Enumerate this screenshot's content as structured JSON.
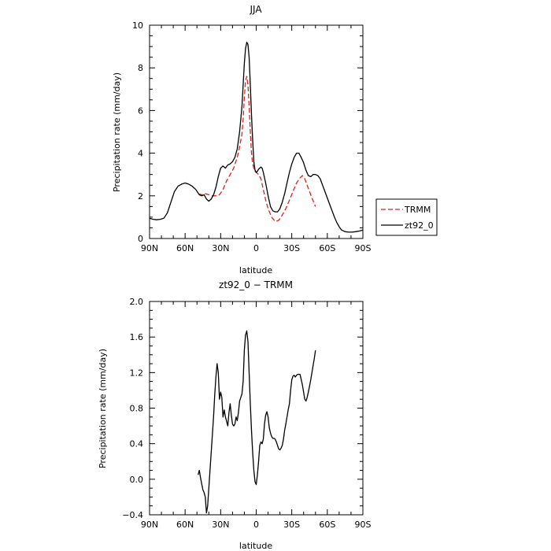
{
  "chart_data": [
    {
      "type": "line",
      "title": "JJA",
      "xlabel": "latitude",
      "ylabel": "Precipitation rate (mm/day)",
      "xlim": [
        90,
        -90
      ],
      "ylim": [
        0,
        10
      ],
      "x_ticks": [
        90,
        60,
        30,
        0,
        -30,
        -60,
        -90
      ],
      "x_tick_labels": [
        "90N",
        "60N",
        "30N",
        "0",
        "30S",
        "60S",
        "90S"
      ],
      "y_ticks": [
        0,
        2,
        4,
        6,
        8,
        10
      ],
      "y_tick_labels": [
        "0",
        "2",
        "4",
        "6",
        "8",
        "10"
      ],
      "grid": false,
      "legend_position": "right",
      "series": [
        {
          "name": "TRMM",
          "color": "#e0201b",
          "dash": "dashed",
          "x": [
            49,
            46,
            43,
            40,
            37,
            34,
            31,
            28,
            25,
            22,
            19,
            16,
            14,
            12,
            11,
            10,
            9,
            8,
            7,
            6,
            5,
            4,
            3,
            2,
            1,
            0,
            -2,
            -4,
            -6,
            -8,
            -10,
            -13,
            -16,
            -19,
            -22,
            -25,
            -28,
            -31,
            -34,
            -37,
            -39,
            -41,
            -43,
            -45,
            -47,
            -50
          ],
          "y": [
            2.1,
            2.05,
            2.1,
            2.05,
            2.0,
            2.0,
            2.05,
            2.3,
            2.7,
            3.0,
            3.3,
            3.8,
            4.3,
            4.9,
            5.6,
            6.6,
            7.4,
            7.6,
            7.2,
            6.2,
            5.0,
            4.0,
            3.5,
            3.3,
            3.15,
            3.1,
            3.0,
            2.8,
            2.3,
            1.8,
            1.4,
            1.0,
            0.8,
            0.85,
            1.1,
            1.4,
            1.8,
            2.2,
            2.6,
            2.85,
            2.95,
            2.8,
            2.5,
            2.2,
            1.9,
            1.5
          ]
        },
        {
          "name": "zt92_0",
          "color": "#000000",
          "dash": "solid",
          "x": [
            90,
            87,
            84,
            81,
            78,
            75,
            72,
            69,
            66,
            63,
            60,
            57,
            54,
            51,
            48,
            46,
            44,
            42,
            40,
            38,
            36,
            34,
            32,
            30,
            28,
            26,
            24,
            22,
            20,
            18,
            16,
            14,
            12,
            11,
            10,
            9,
            8,
            7,
            6,
            5,
            4,
            3,
            2,
            1,
            0,
            -1,
            -2,
            -3,
            -4,
            -5,
            -6,
            -8,
            -10,
            -12,
            -14,
            -16,
            -18,
            -20,
            -22,
            -24,
            -26,
            -28,
            -30,
            -32,
            -34,
            -36,
            -38,
            -40,
            -42,
            -44,
            -46,
            -48,
            -50,
            -52,
            -54,
            -56,
            -58,
            -60,
            -62,
            -64,
            -66,
            -68,
            -70,
            -72,
            -75,
            -78,
            -81,
            -84,
            -87,
            -90
          ],
          "y": [
            0.95,
            0.9,
            0.88,
            0.9,
            0.95,
            1.2,
            1.7,
            2.2,
            2.45,
            2.55,
            2.6,
            2.55,
            2.45,
            2.3,
            2.05,
            2.0,
            2.05,
            1.85,
            1.75,
            1.85,
            2.05,
            2.4,
            2.9,
            3.3,
            3.4,
            3.3,
            3.45,
            3.5,
            3.6,
            3.8,
            4.2,
            5.0,
            6.2,
            7.2,
            8.2,
            8.9,
            9.2,
            9.1,
            8.5,
            7.2,
            5.8,
            4.6,
            3.6,
            3.2,
            3.1,
            3.15,
            3.25,
            3.3,
            3.35,
            3.3,
            3.1,
            2.6,
            2.0,
            1.5,
            1.3,
            1.25,
            1.25,
            1.4,
            1.7,
            2.1,
            2.6,
            3.1,
            3.5,
            3.8,
            4.0,
            4.0,
            3.8,
            3.55,
            3.2,
            2.95,
            2.9,
            3.0,
            3.0,
            2.95,
            2.8,
            2.5,
            2.2,
            1.9,
            1.6,
            1.3,
            1.0,
            0.75,
            0.55,
            0.4,
            0.32,
            0.3,
            0.3,
            0.32,
            0.35,
            0.4
          ]
        }
      ]
    },
    {
      "type": "line",
      "title": "zt92_0 − TRMM",
      "xlabel": "latitude",
      "ylabel": "Precipitation rate (mm/day)",
      "xlim": [
        90,
        -90
      ],
      "ylim": [
        -0.4,
        2.0
      ],
      "x_ticks": [
        90,
        60,
        30,
        0,
        -30,
        -60,
        -90
      ],
      "x_tick_labels": [
        "90N",
        "60N",
        "30N",
        "0",
        "30S",
        "60S",
        "90S"
      ],
      "y_ticks": [
        -0.4,
        0.0,
        0.4,
        0.8,
        1.2,
        1.6,
        2.0
      ],
      "y_tick_labels": [
        "−0.4",
        "0.0",
        "0.4",
        "0.8",
        "1.2",
        "1.6",
        "2.0"
      ],
      "grid": false,
      "series": [
        {
          "color": "#000000",
          "x": [
            49,
            48,
            47,
            46,
            45,
            44,
            43,
            42,
            41,
            40,
            39,
            38,
            37,
            36,
            35,
            34,
            33,
            32,
            31,
            30,
            29,
            28,
            27,
            26,
            25,
            24,
            23,
            22,
            21,
            20,
            19,
            18,
            17,
            16,
            15,
            14,
            13,
            12,
            11,
            10,
            9,
            8,
            7,
            6,
            5,
            4,
            3,
            2,
            1,
            0,
            -1,
            -2,
            -3,
            -4,
            -5,
            -6,
            -7,
            -8,
            -9,
            -10,
            -11,
            -12,
            -13,
            -14,
            -15,
            -16,
            -17,
            -18,
            -19,
            -20,
            -21,
            -22,
            -23,
            -24,
            -25,
            -26,
            -27,
            -28,
            -29,
            -30,
            -31,
            -32,
            -33,
            -34,
            -35,
            -36,
            -37,
            -38,
            -39,
            -40,
            -41,
            -42,
            -43,
            -44,
            -45,
            -46,
            -47,
            -48,
            -49,
            -50
          ],
          "y": [
            0.05,
            0.1,
            0.02,
            -0.05,
            -0.12,
            -0.15,
            -0.2,
            -0.38,
            -0.3,
            -0.1,
            0.1,
            0.3,
            0.5,
            0.7,
            0.95,
            1.15,
            1.3,
            1.2,
            0.9,
            0.98,
            0.92,
            0.7,
            0.78,
            0.7,
            0.65,
            0.6,
            0.75,
            0.85,
            0.72,
            0.62,
            0.6,
            0.62,
            0.7,
            0.66,
            0.75,
            0.88,
            0.92,
            0.96,
            1.1,
            1.45,
            1.62,
            1.67,
            1.55,
            1.2,
            0.85,
            0.55,
            0.3,
            0.1,
            -0.03,
            -0.06,
            0.05,
            0.2,
            0.38,
            0.42,
            0.4,
            0.45,
            0.62,
            0.72,
            0.76,
            0.7,
            0.58,
            0.52,
            0.48,
            0.46,
            0.46,
            0.45,
            0.42,
            0.38,
            0.34,
            0.33,
            0.35,
            0.38,
            0.45,
            0.55,
            0.62,
            0.7,
            0.78,
            0.85,
            1.0,
            1.12,
            1.16,
            1.17,
            1.15,
            1.17,
            1.18,
            1.18,
            1.18,
            1.12,
            1.06,
            0.98,
            0.9,
            0.88,
            0.92,
            0.98,
            1.05,
            1.12,
            1.2,
            1.28,
            1.36,
            1.45
          ]
        }
      ]
    }
  ]
}
